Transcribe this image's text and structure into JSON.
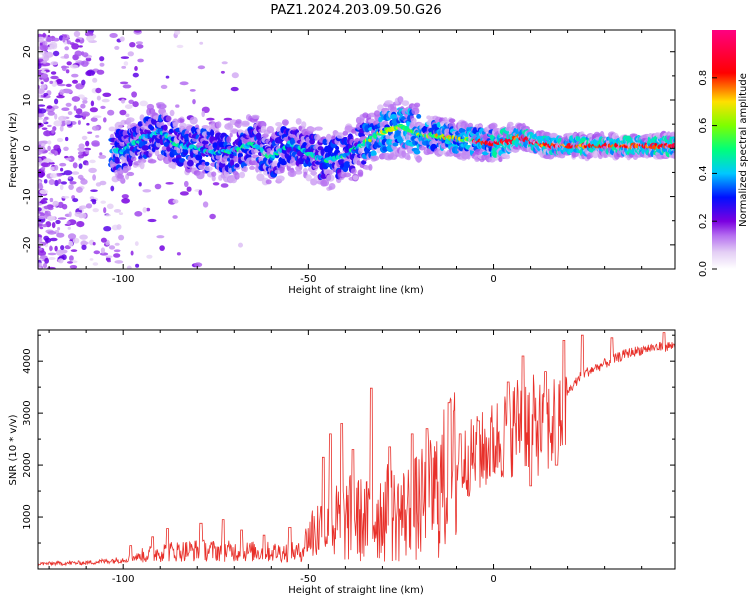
{
  "figure": {
    "title": "PAZ1.2024.203.09.50.G26"
  },
  "chart_data": [
    {
      "type": "heatmap",
      "xlabel": "Height of straight line (km)",
      "ylabel": "Frequency (Hz)",
      "xlim": [
        -123,
        49
      ],
      "ylim": [
        -25,
        24.5
      ],
      "x_ticks": [
        -100,
        -50,
        0
      ],
      "y_ticks": [
        -20,
        -10,
        0,
        10,
        20
      ],
      "colorbar": {
        "label": "Normalized spectral amplitude",
        "range": [
          0,
          1
        ],
        "ticks": [
          "0.0",
          "0.2",
          "0.4",
          "0.6",
          "0.8"
        ],
        "colormap": [
          "#ffffff",
          "#e4cff5",
          "#b56ef0",
          "#7b00e0",
          "#0010ff",
          "#00c8ff",
          "#00ff7a",
          "#7dff00",
          "#ffe000",
          "#ff0000",
          "#ff0080"
        ]
      },
      "ridge": {
        "x": [
          -100,
          -95,
          -90,
          -85,
          -80,
          -75,
          -70,
          -65,
          -60,
          -55,
          -50,
          -45,
          -40,
          -35,
          -30,
          -25,
          -20,
          -15,
          -10,
          -5,
          0,
          5,
          7,
          10,
          15,
          20,
          30,
          40,
          49
        ],
        "freq": [
          -0.5,
          2.0,
          3.5,
          0.5,
          0.0,
          -1.0,
          -0.5,
          1.0,
          -2.0,
          1.0,
          -1.0,
          -2.5,
          -1.5,
          1.0,
          3.5,
          4.5,
          3.0,
          2.5,
          2.0,
          1.5,
          1.0,
          1.5,
          2.5,
          1.5,
          0.5,
          0.5,
          0.5,
          0.5,
          0.5
        ]
      }
    },
    {
      "type": "line",
      "xlabel": "Height of straight line (km)",
      "ylabel": "SNR (10 * v/v)",
      "xlim": [
        -123,
        49
      ],
      "ylim": [
        0,
        4600
      ],
      "x_ticks": [
        -100,
        -50,
        0
      ],
      "y_ticks": [
        1000,
        2000,
        3000,
        4000
      ],
      "series": [
        {
          "color": "#e8302a",
          "trend": {
            "x": [
              -123,
              -110,
              -100,
              -95,
              -90,
              -80,
              -70,
              -60,
              -52,
              -50,
              -46,
              -42,
              -38,
              -34,
              -30,
              -26,
              -22,
              -18,
              -14,
              -10,
              -6,
              -2,
              0,
              4,
              8,
              10,
              14,
              18,
              20,
              24,
              30,
              36,
              42,
              49
            ],
            "snr": [
              100,
              120,
              180,
              250,
              330,
              360,
              340,
              330,
              320,
              650,
              820,
              880,
              980,
              920,
              1100,
              1040,
              1120,
              1280,
              1600,
              1950,
              2150,
              2300,
              2420,
              2650,
              2900,
              2800,
              2650,
              2950,
              3400,
              3750,
              3950,
              4150,
              4250,
              4300
            ]
          },
          "spikes": [
            {
              "x": -98,
              "snr": 450
            },
            {
              "x": -92,
              "snr": 620
            },
            {
              "x": -88,
              "snr": 780
            },
            {
              "x": -79,
              "snr": 880
            },
            {
              "x": -73,
              "snr": 950
            },
            {
              "x": -68,
              "snr": 750
            },
            {
              "x": -62,
              "snr": 650
            },
            {
              "x": -55,
              "snr": 800
            },
            {
              "x": -46,
              "snr": 2150
            },
            {
              "x": -44,
              "snr": 2600
            },
            {
              "x": -41,
              "snr": 2800
            },
            {
              "x": -38,
              "snr": 2300
            },
            {
              "x": -33,
              "snr": 3480
            },
            {
              "x": -28,
              "snr": 2350
            },
            {
              "x": -22,
              "snr": 2600
            },
            {
              "x": -18,
              "snr": 2700
            },
            {
              "x": -12,
              "snr": 3200
            },
            {
              "x": -9,
              "snr": 2600
            },
            {
              "x": -4,
              "snr": 2850
            },
            {
              "x": 4,
              "snr": 3600
            },
            {
              "x": 8,
              "snr": 4100
            },
            {
              "x": 10,
              "snr": 1600
            },
            {
              "x": 14,
              "snr": 3800
            },
            {
              "x": 17,
              "snr": 2000
            },
            {
              "x": 19,
              "snr": 4400
            },
            {
              "x": 24,
              "snr": 4500
            },
            {
              "x": 32,
              "snr": 4450
            },
            {
              "x": 46,
              "snr": 4550
            }
          ]
        }
      ]
    }
  ]
}
